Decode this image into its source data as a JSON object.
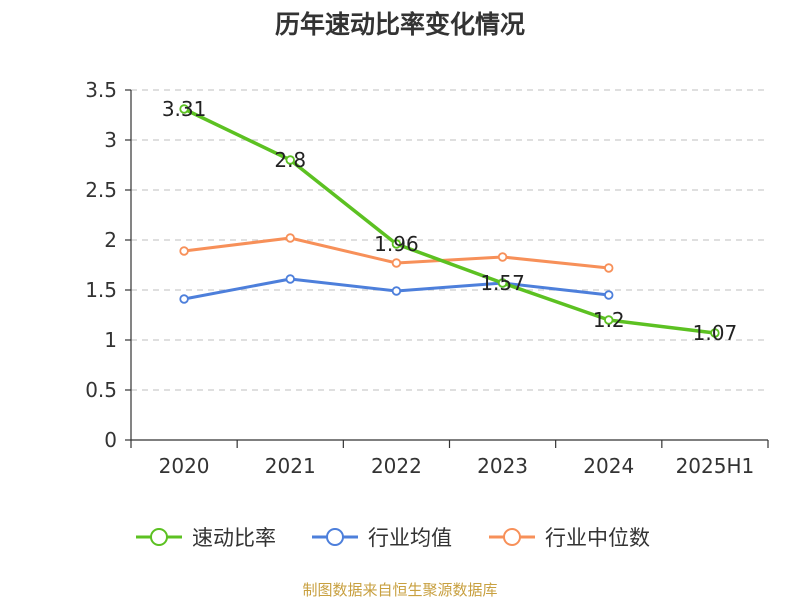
{
  "chart_data": {
    "type": "line",
    "title": "历年速动比率变化情况",
    "categories": [
      "2020",
      "2021",
      "2022",
      "2023",
      "2024",
      "2025H1"
    ],
    "ylim": [
      0,
      3.5
    ],
    "yticks": [
      "0",
      "0.5",
      "1",
      "1.5",
      "2",
      "2.5",
      "3",
      "3.5"
    ],
    "grid": true,
    "legend_position": "bottom",
    "series": [
      {
        "name": "速动比率",
        "color": "#5cc122",
        "values": [
          3.31,
          2.8,
          1.96,
          1.57,
          1.2,
          1.07
        ],
        "labels": [
          "3.31",
          "2.8",
          "1.96",
          "1.57",
          "1.2",
          "1.07"
        ]
      },
      {
        "name": "行业均值",
        "color": "#4d7fdb",
        "values": [
          1.41,
          1.61,
          1.49,
          1.57,
          1.45,
          null
        ]
      },
      {
        "name": "行业中位数",
        "color": "#f79059",
        "values": [
          1.89,
          2.02,
          1.77,
          1.83,
          1.72,
          null
        ]
      }
    ]
  },
  "source": "制图数据来自恒生聚源数据库"
}
